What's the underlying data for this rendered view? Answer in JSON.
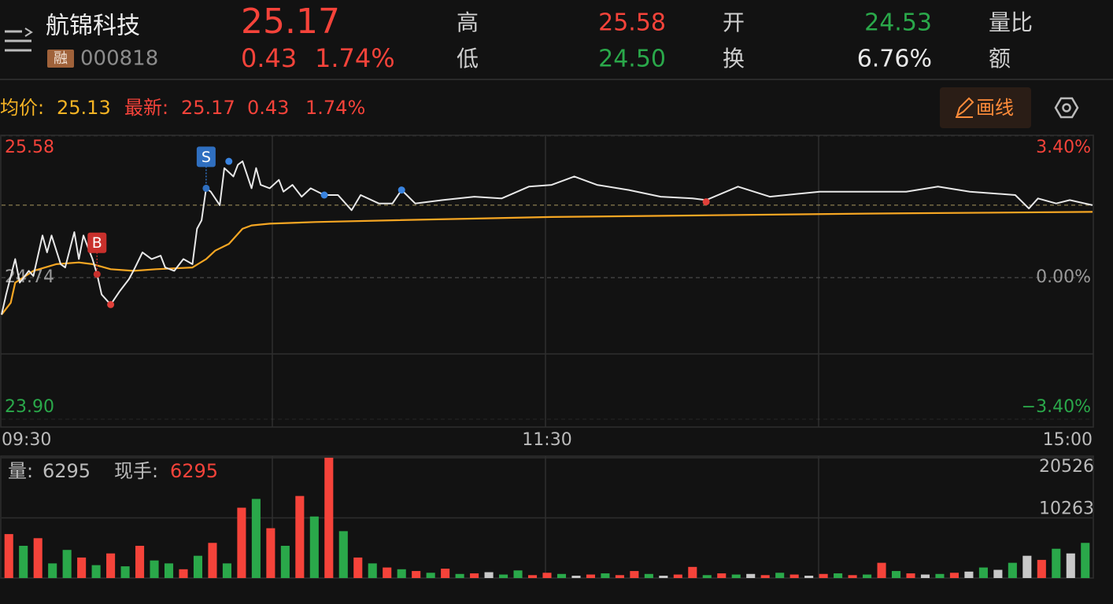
{
  "header": {
    "name": "航锦科技",
    "badge": "融",
    "code": "000818",
    "price": "25.17",
    "change": "0.43",
    "change_pct": "1.74%",
    "stats": [
      {
        "label": "高",
        "value": "25.58",
        "color": "#f5433a"
      },
      {
        "label": "低",
        "value": "24.50",
        "color": "#2aa84a"
      },
      {
        "label": "开",
        "value": "24.53",
        "color": "#2aa84a"
      },
      {
        "label": "换",
        "value": "6.76%",
        "color": "#e8e8e8"
      }
    ],
    "extra_labels": [
      "量比",
      "额"
    ]
  },
  "legend": {
    "avg_label": "均价:",
    "avg_value": "25.13",
    "latest_label": "最新:",
    "latest_value": "25.17",
    "latest_change": "0.43",
    "latest_pct": "1.74%"
  },
  "draw_button": "画线",
  "price_chart": {
    "type": "line",
    "xlim": [
      0,
      240
    ],
    "xticks": [
      {
        "value": 0,
        "label": "09:30"
      },
      {
        "value": 120,
        "label": "11:30"
      },
      {
        "value": 240,
        "label": "15:00"
      }
    ],
    "ylim": [
      23.9,
      25.58
    ],
    "yticks": [
      25.58,
      24.74,
      {
        "value": 23.9,
        "label": "23.90"
      }
    ],
    "y2lim": [
      -3.4,
      3.4
    ],
    "y2ticks": [
      {
        "value": 3.4,
        "label": "3.40%"
      },
      {
        "value": 0,
        "label": "0.00%"
      },
      {
        "value": -3.4,
        "label": "−3.40%"
      }
    ],
    "price": {
      "color": "#e8e8e8",
      "x": [
        0,
        1,
        3,
        4,
        6,
        7,
        9,
        10,
        11,
        13,
        14,
        16,
        17,
        18,
        20,
        21,
        22,
        24,
        26,
        28,
        29,
        31,
        33,
        35,
        36,
        38,
        40,
        42,
        43,
        44,
        45,
        46,
        48,
        49,
        51,
        52,
        53,
        55,
        56,
        57,
        59,
        61,
        62,
        64,
        66,
        68,
        71,
        74,
        77,
        79,
        83,
        86,
        88,
        91,
        97,
        104,
        110,
        116,
        121,
        126,
        131,
        138,
        145,
        152,
        155,
        162,
        169,
        180,
        190,
        199,
        206,
        213,
        218,
        223,
        226,
        228,
        232,
        235,
        240
      ],
      "values": [
        24.52,
        24.64,
        24.85,
        24.71,
        24.78,
        24.75,
        24.99,
        24.89,
        24.99,
        24.82,
        24.8,
        25.01,
        24.85,
        24.99,
        24.85,
        24.76,
        24.64,
        24.58,
        24.66,
        24.73,
        24.78,
        24.89,
        24.85,
        24.87,
        24.8,
        24.78,
        24.85,
        24.82,
        25.03,
        25.08,
        25.27,
        25.25,
        25.17,
        25.39,
        25.34,
        25.41,
        25.43,
        25.27,
        25.39,
        25.29,
        25.27,
        25.32,
        25.25,
        25.29,
        25.22,
        25.27,
        25.23,
        25.23,
        25.14,
        25.23,
        25.18,
        25.18,
        25.26,
        25.18,
        25.2,
        25.22,
        25.21,
        25.28,
        25.29,
        25.34,
        25.29,
        25.26,
        25.22,
        25.21,
        25.2,
        25.28,
        25.22,
        25.25,
        25.25,
        25.25,
        25.28,
        25.25,
        25.24,
        25.23,
        25.15,
        25.21,
        25.18,
        25.2,
        25.17
      ]
    },
    "avg": {
      "color": "#f5a623",
      "x": [
        0,
        2,
        3,
        7,
        12,
        17,
        20,
        24,
        29,
        34,
        42,
        45,
        47,
        50,
        53,
        55,
        59,
        69,
        86,
        121,
        156,
        190,
        240
      ],
      "values": [
        24.52,
        24.59,
        24.71,
        24.78,
        24.82,
        24.83,
        24.82,
        24.79,
        24.78,
        24.79,
        24.8,
        24.85,
        24.9,
        24.94,
        25.03,
        25.05,
        25.06,
        25.07,
        25.08,
        25.1,
        25.11,
        25.12,
        25.13
      ]
    },
    "markers": [
      {
        "label": "B",
        "x": 21,
        "value": 24.76,
        "color": "#c9302c"
      },
      {
        "label": "S",
        "x": 45,
        "value": 25.27,
        "color": "#2f6fc0"
      }
    ],
    "dots": [
      {
        "x": 24,
        "value": 24.58,
        "color": "#e0403a"
      },
      {
        "x": 50,
        "value": 25.43,
        "color": "#3a84e0"
      },
      {
        "x": 71,
        "value": 25.23,
        "color": "#3a84e0"
      },
      {
        "x": 88,
        "value": 25.26,
        "color": "#3a84e0"
      },
      {
        "x": 155,
        "value": 25.19,
        "color": "#e0403a"
      }
    ]
  },
  "volume_chart": {
    "type": "bar",
    "label": "量:",
    "value": "6295",
    "hand_label": "现手:",
    "hand_value": "6295",
    "ylim": [
      0,
      20526
    ],
    "yticks": [
      20526,
      10263
    ],
    "values": [
      7500,
      5500,
      6800,
      2500,
      4800,
      3500,
      2200,
      4200,
      2000,
      5500,
      3000,
      2500,
      1500,
      3800,
      6000,
      2500,
      12000,
      13500,
      8500,
      5500,
      14000,
      10500,
      20526,
      8000,
      3500,
      2500,
      1800,
      1500,
      1200,
      900,
      1600,
      700,
      800,
      1000,
      600,
      1300,
      500,
      900,
      700,
      400,
      600,
      800,
      500,
      1200,
      700,
      400,
      600,
      1900,
      500,
      800,
      600,
      700,
      500,
      900,
      600,
      400,
      700,
      800,
      500,
      600,
      2600,
      1200,
      800,
      600,
      700,
      900,
      1100,
      1800,
      1400,
      2600,
      3800,
      3100,
      5000,
      4200,
      6000
    ],
    "colors": [
      "#f5433a",
      "#2aa84a",
      "#f5433a",
      "#2aa84a",
      "#2aa84a",
      "#f5433a",
      "#2aa84a",
      "#f5433a",
      "#2aa84a",
      "#f5433a",
      "#2aa84a",
      "#2aa84a",
      "#f5433a",
      "#2aa84a",
      "#f5433a",
      "#2aa84a",
      "#f5433a",
      "#2aa84a",
      "#f5433a",
      "#2aa84a",
      "#f5433a",
      "#2aa84a",
      "#f5433a",
      "#2aa84a",
      "#f5433a",
      "#2aa84a",
      "#f5433a",
      "#2aa84a",
      "#f5433a",
      "#2aa84a",
      "#f5433a",
      "#2aa84a",
      "#f5433a",
      "#c8c8c8",
      "#2aa84a",
      "#2aa84a",
      "#f5433a",
      "#f5433a",
      "#2aa84a",
      "#c8c8c8",
      "#f5433a",
      "#2aa84a",
      "#f5433a",
      "#f5433a",
      "#2aa84a",
      "#c8c8c8",
      "#f5433a",
      "#f5433a",
      "#2aa84a",
      "#f5433a",
      "#2aa84a",
      "#c8c8c8",
      "#f5433a",
      "#2aa84a",
      "#f5433a",
      "#c8c8c8",
      "#f5433a",
      "#2aa84a",
      "#f5433a",
      "#2aa84a",
      "#f5433a",
      "#2aa84a",
      "#f5433a",
      "#c8c8c8",
      "#2aa84a",
      "#f5433a",
      "#c8c8c8",
      "#2aa84a",
      "#c8c8c8",
      "#2aa84a",
      "#c8c8c8",
      "#f5433a",
      "#2aa84a",
      "#c8c8c8",
      "#2aa84a"
    ]
  }
}
